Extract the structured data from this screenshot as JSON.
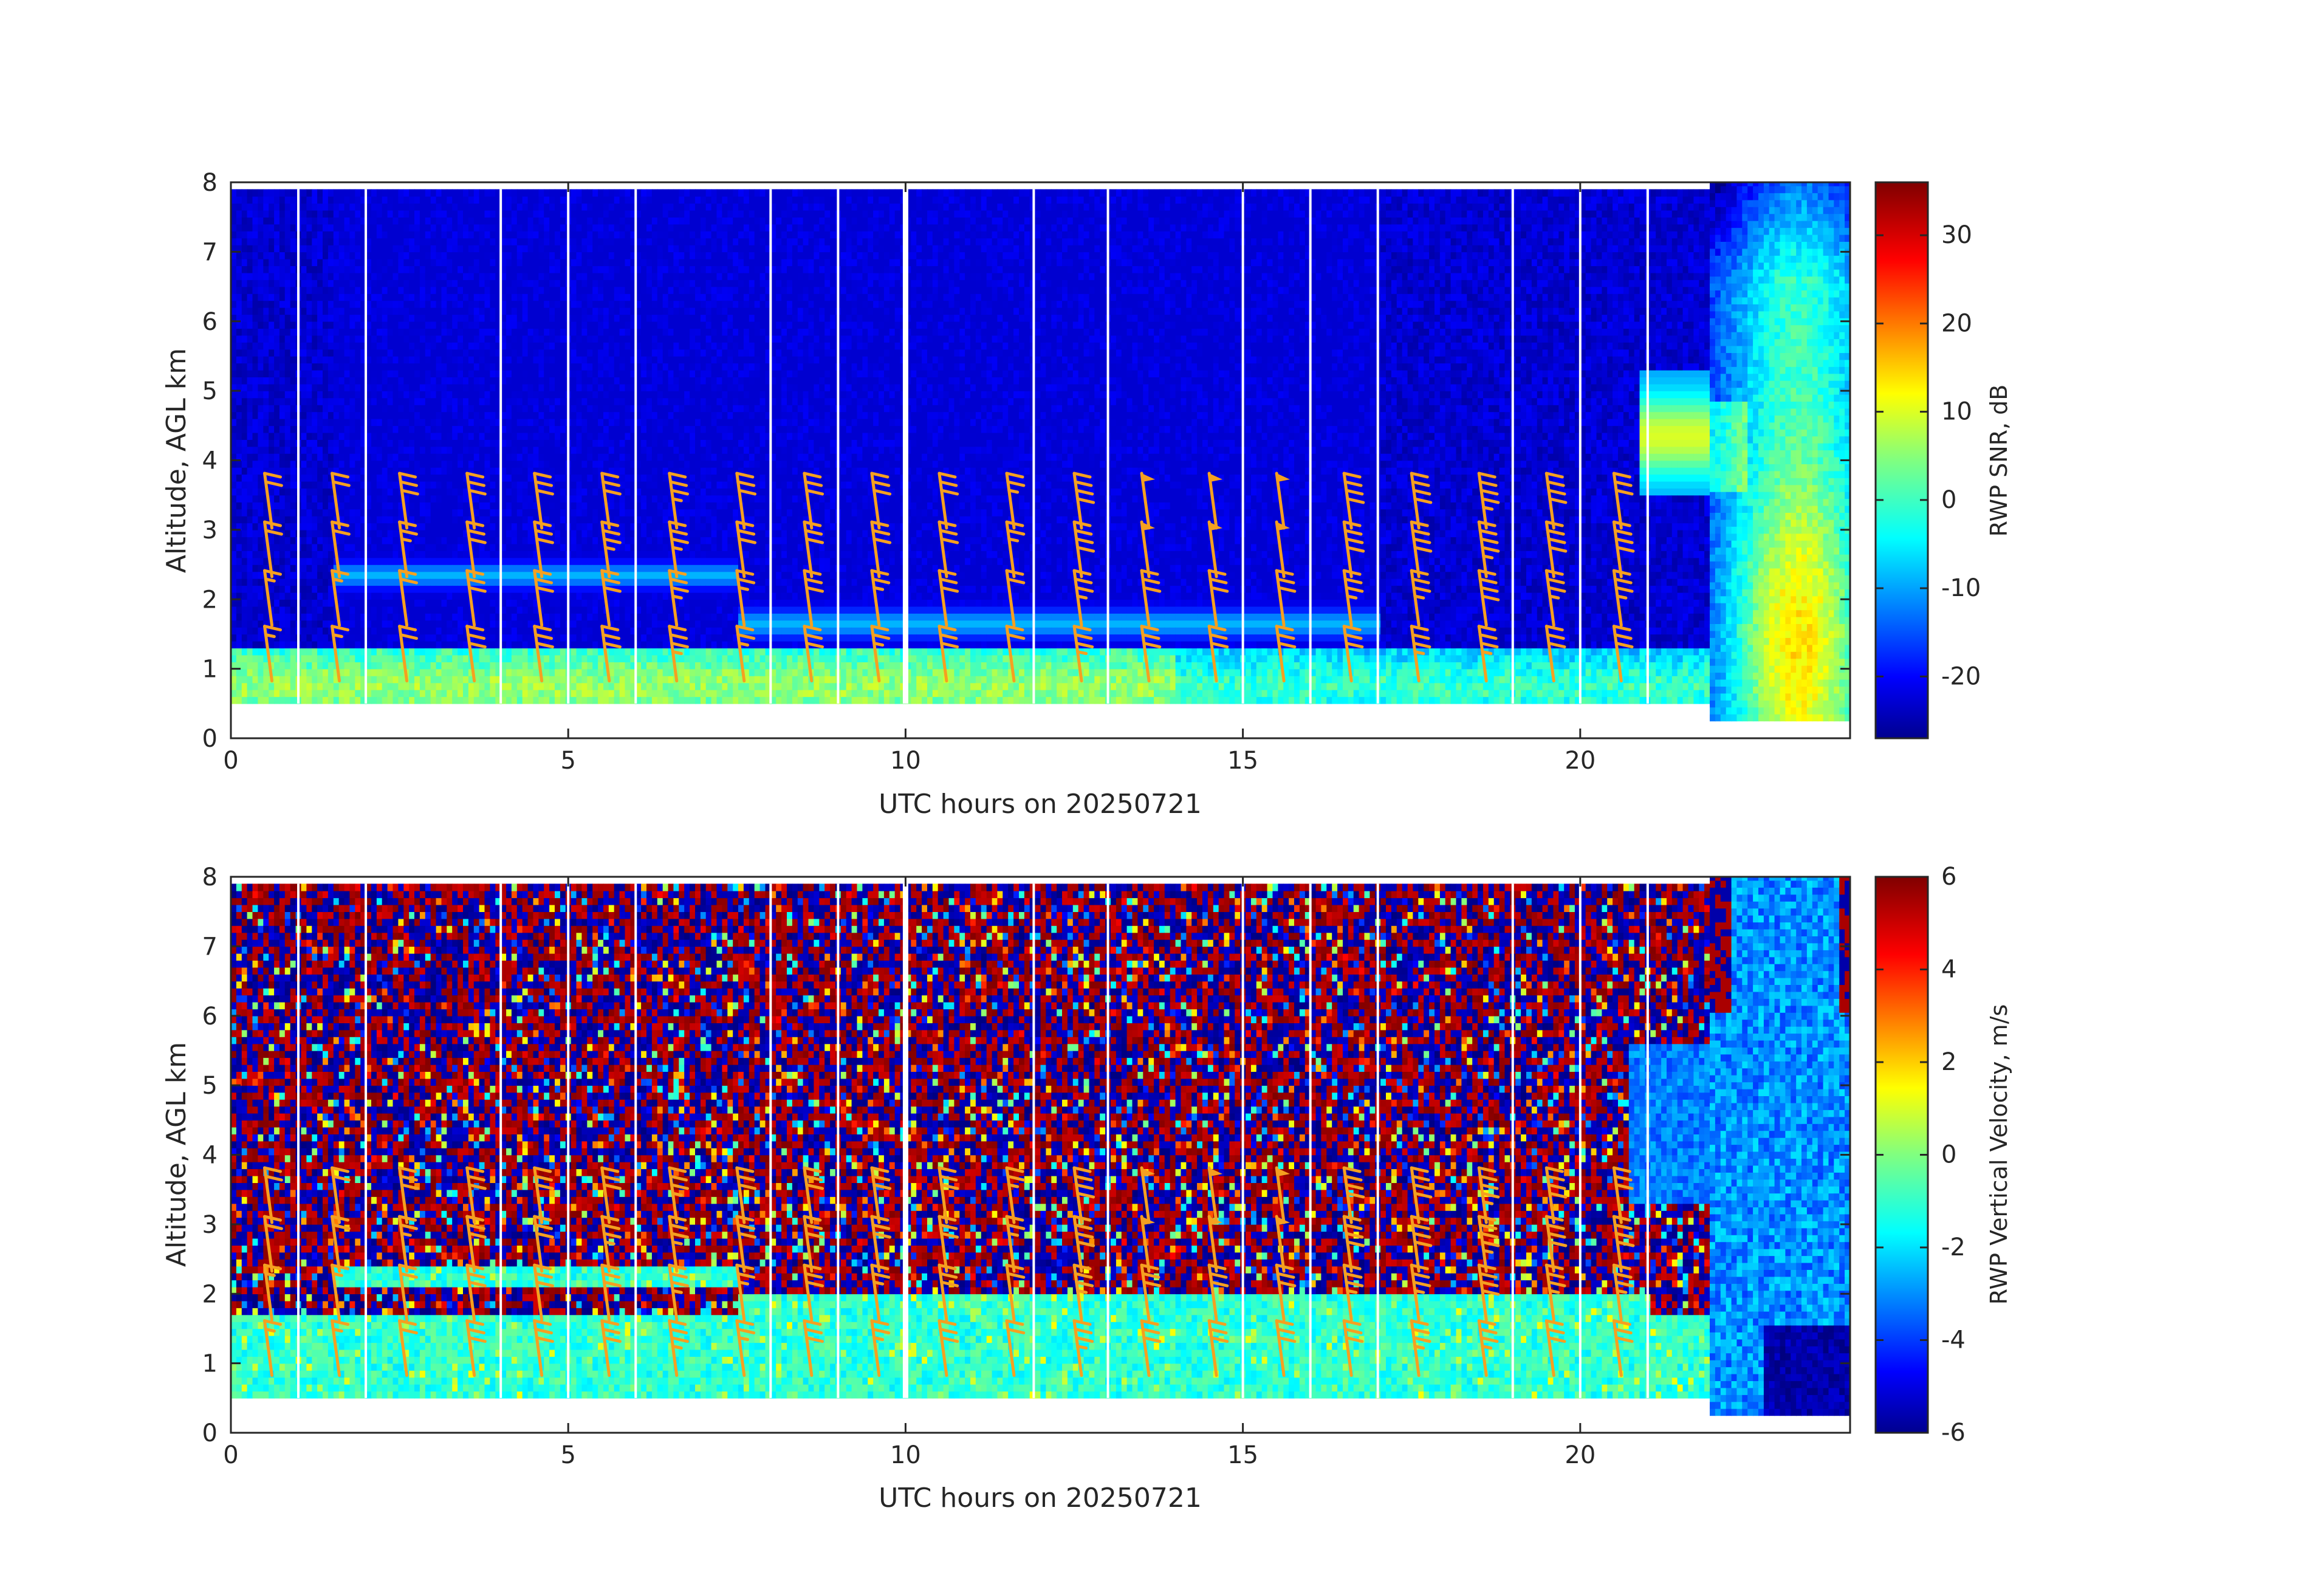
{
  "chart_data": [
    {
      "type": "heatmap",
      "title": "",
      "xlabel": "UTC hours on 20250721",
      "ylabel": "Altitude, AGL km",
      "xlim": [
        0,
        24
      ],
      "ylim": [
        0,
        8
      ],
      "xticks": [
        0,
        5,
        10,
        15,
        20
      ],
      "yticks": [
        0,
        1,
        2,
        3,
        4,
        5,
        6,
        7,
        8
      ],
      "colorbar": {
        "label": "RWP SNR, dB",
        "range": [
          -27,
          36
        ],
        "ticks": [
          -20,
          -10,
          0,
          10,
          20,
          30
        ],
        "colormap": "jet"
      },
      "data_range": {
        "start_km": 0.5,
        "top_km": 7.9,
        "precip_start_km": 0.25,
        "precip_top_km": 8.0
      },
      "gaps_hours": [
        1.0,
        2.0,
        4.0,
        5.0,
        6.0,
        8.0,
        9.0,
        10.0,
        11.9,
        13.0,
        15.0,
        16.0,
        17.0,
        19.0,
        20.0,
        21.0
      ],
      "layers": [
        {
          "name": "boundary layer",
          "hours": [
            0,
            22
          ],
          "base_km": 0.6,
          "top_km": 1.3,
          "snr_db": 2
        },
        {
          "name": "elevated layer",
          "hours": [
            1.5,
            7.5
          ],
          "alt_km": 2.3,
          "snr_db": -8
        },
        {
          "name": "mid layer",
          "hours": [
            7.5,
            17
          ],
          "alt_km": 1.6,
          "snr_db": -8
        }
      ],
      "precipitation": {
        "hours": [
          21.9,
          24
        ],
        "alt_km": [
          0.25,
          8.0
        ],
        "max_snr_db": 36
      },
      "wind_barbs": {
        "color": "#f5a020",
        "hours": [
          0.5,
          1.5,
          2.5,
          3.5,
          4.5,
          5.5,
          6.5,
          7.5,
          8.5,
          9.5,
          10.5,
          11.5,
          12.5,
          13.5,
          14.5,
          15.5,
          16.5,
          17.5,
          18.5,
          19.5,
          20.5
        ],
        "altitudes_km": [
          1.0,
          1.8,
          2.5,
          3.2
        ],
        "speeds_kt": [
          [
            15,
            15,
            20,
            20
          ],
          [
            15,
            15,
            20,
            20
          ],
          [
            20,
            20,
            25,
            30
          ],
          [
            30,
            30,
            30,
            30
          ],
          [
            30,
            30,
            30,
            30
          ],
          [
            30,
            30,
            35,
            30
          ],
          [
            35,
            35,
            35,
            35
          ],
          [
            25,
            25,
            30,
            30
          ],
          [
            30,
            30,
            30,
            30
          ],
          [
            25,
            25,
            30,
            30
          ],
          [
            30,
            30,
            30,
            30
          ],
          [
            20,
            20,
            25,
            25
          ],
          [
            35,
            35,
            40,
            40
          ],
          [
            30,
            30,
            50,
            50
          ],
          [
            30,
            30,
            50,
            50
          ],
          [
            30,
            30,
            50,
            50
          ],
          [
            30,
            35,
            40,
            40
          ],
          [
            35,
            35,
            40,
            40
          ],
          [
            35,
            40,
            45,
            45
          ],
          [
            30,
            35,
            40,
            40
          ],
          [
            30,
            35,
            40,
            30
          ]
        ]
      }
    },
    {
      "type": "heatmap",
      "title": "",
      "xlabel": "UTC hours on 20250721",
      "ylabel": "Altitude, AGL km",
      "xlim": [
        0,
        24
      ],
      "ylim": [
        0,
        8
      ],
      "xticks": [
        0,
        5,
        10,
        15,
        20
      ],
      "yticks": [
        0,
        1,
        2,
        3,
        4,
        5,
        6,
        7,
        8
      ],
      "colorbar": {
        "label": "RWP Vertical Velocity, m/s",
        "range": [
          -6,
          6
        ],
        "ticks": [
          -6,
          -4,
          -2,
          0,
          2,
          4,
          6
        ],
        "colormap": "jet"
      },
      "data_range": {
        "start_km": 0.5,
        "top_km": 7.9,
        "precip_start_km": 0.25,
        "precip_top_km": 8.0
      },
      "background": "noise, alternating about -6 and +6 m/s",
      "layers": [
        {
          "name": "boundary layer",
          "hours": [
            0,
            22
          ],
          "base_km": 0.5,
          "top_km": 1.7,
          "w_ms": -1
        },
        {
          "name": "elevated layer",
          "hours": [
            1.5,
            7.5
          ],
          "alt_km": 2.2,
          "w_ms": -1
        },
        {
          "name": "mid layer",
          "hours": [
            7.5,
            21
          ],
          "alt_km": 1.8,
          "w_ms": -1
        }
      ],
      "precipitation": {
        "hours": [
          21.9,
          24
        ],
        "alt_km": [
          0.25,
          8.0
        ],
        "w_ms": -3,
        "heavy_below_km": 1.5,
        "heavy_w_ms": -6
      },
      "wind_barbs": "same as panel 1"
    }
  ]
}
